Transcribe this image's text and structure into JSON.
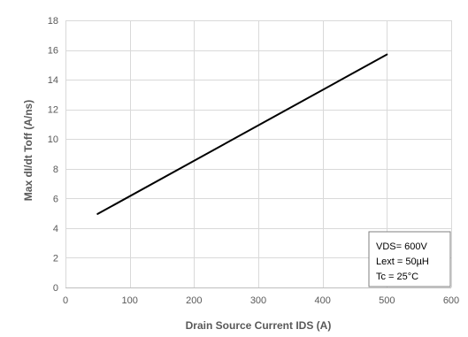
{
  "chart_data": {
    "type": "line",
    "xlabel": "Drain Source Current IDS (A)",
    "ylabel": "Max dI/dt Toff (A/ns)",
    "xlim": [
      0,
      600
    ],
    "ylim": [
      0,
      18
    ],
    "x_ticks": [
      0,
      100,
      200,
      300,
      400,
      500,
      600
    ],
    "y_ticks": [
      0,
      2,
      4,
      6,
      8,
      10,
      12,
      14,
      16,
      18
    ],
    "grid": true,
    "legend": "none",
    "series": [
      {
        "color": "#000000",
        "x": [
          50,
          500
        ],
        "y": [
          4.95,
          15.7
        ]
      }
    ],
    "annotation": {
      "placement": "bottom-right",
      "lines": [
        "VDS= 600V",
        "Lext = 50µH",
        "Tc = 25°C"
      ]
    }
  }
}
